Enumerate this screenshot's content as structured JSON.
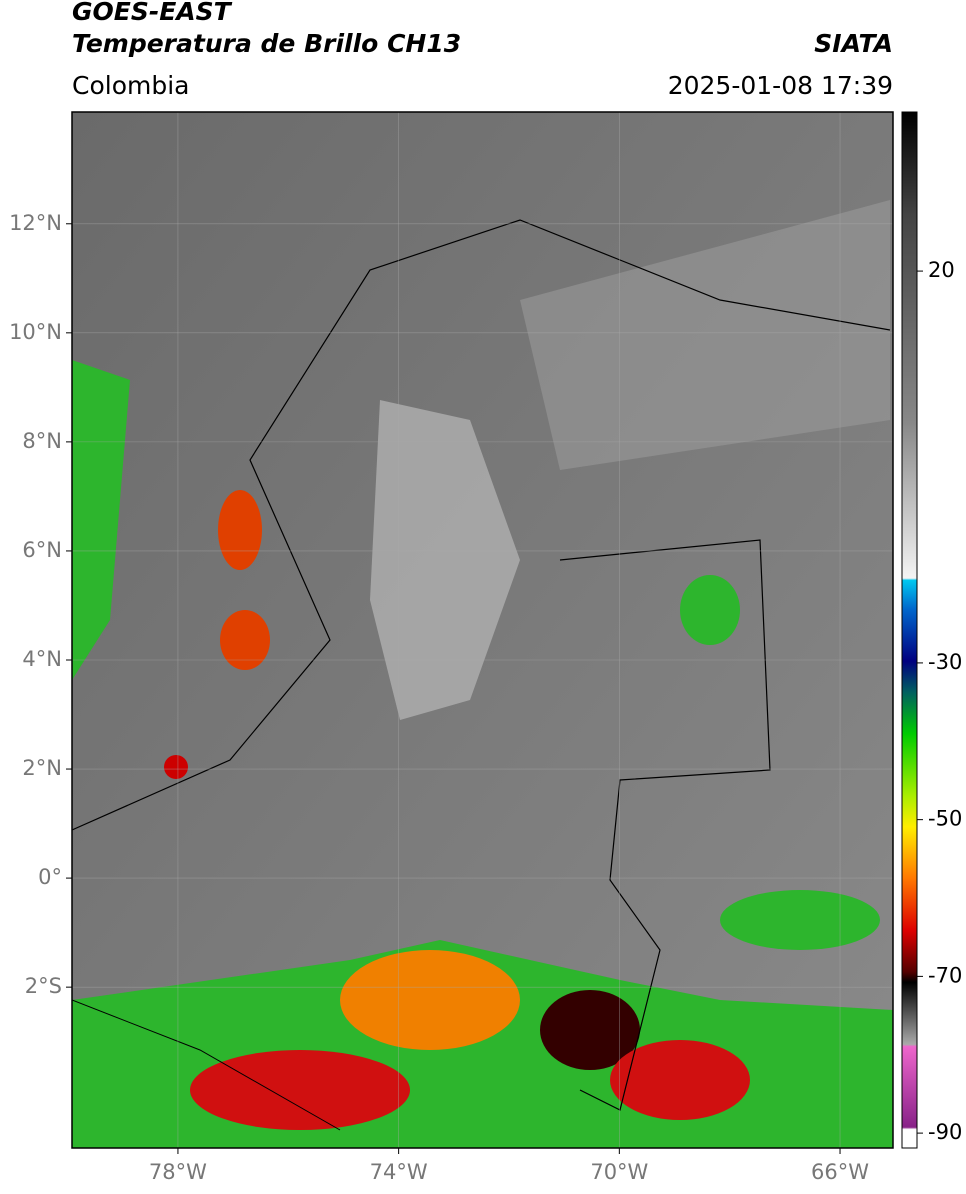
{
  "header": {
    "title": "GOES-EAST",
    "subtitle": "Temperatura de Brillo CH13",
    "source": "SIATA",
    "region": "Colombia",
    "datetime": "2025-01-08 17:39"
  },
  "map": {
    "xlim": [
      -79.92,
      -65.04
    ],
    "ylim": [
      -4.95,
      14.05
    ],
    "lat_ticks": [
      {
        "value": 12,
        "label": "12°N"
      },
      {
        "value": 10,
        "label": "10°N"
      },
      {
        "value": 8,
        "label": "8°N"
      },
      {
        "value": 6,
        "label": "6°N"
      },
      {
        "value": 4,
        "label": "4°N"
      },
      {
        "value": 2,
        "label": "2°N"
      },
      {
        "value": 0,
        "label": "0°"
      },
      {
        "value": -2,
        "label": "2°S"
      }
    ],
    "lon_ticks": [
      {
        "value": -78,
        "label": "78°W"
      },
      {
        "value": -74,
        "label": "74°W"
      },
      {
        "value": -70,
        "label": "70°W"
      },
      {
        "value": -66,
        "label": "66°W"
      }
    ]
  },
  "colorbar": {
    "lim": [
      40.3,
      -91.9
    ],
    "ticks": [
      20,
      -30,
      -50,
      -70,
      -90
    ]
  }
}
